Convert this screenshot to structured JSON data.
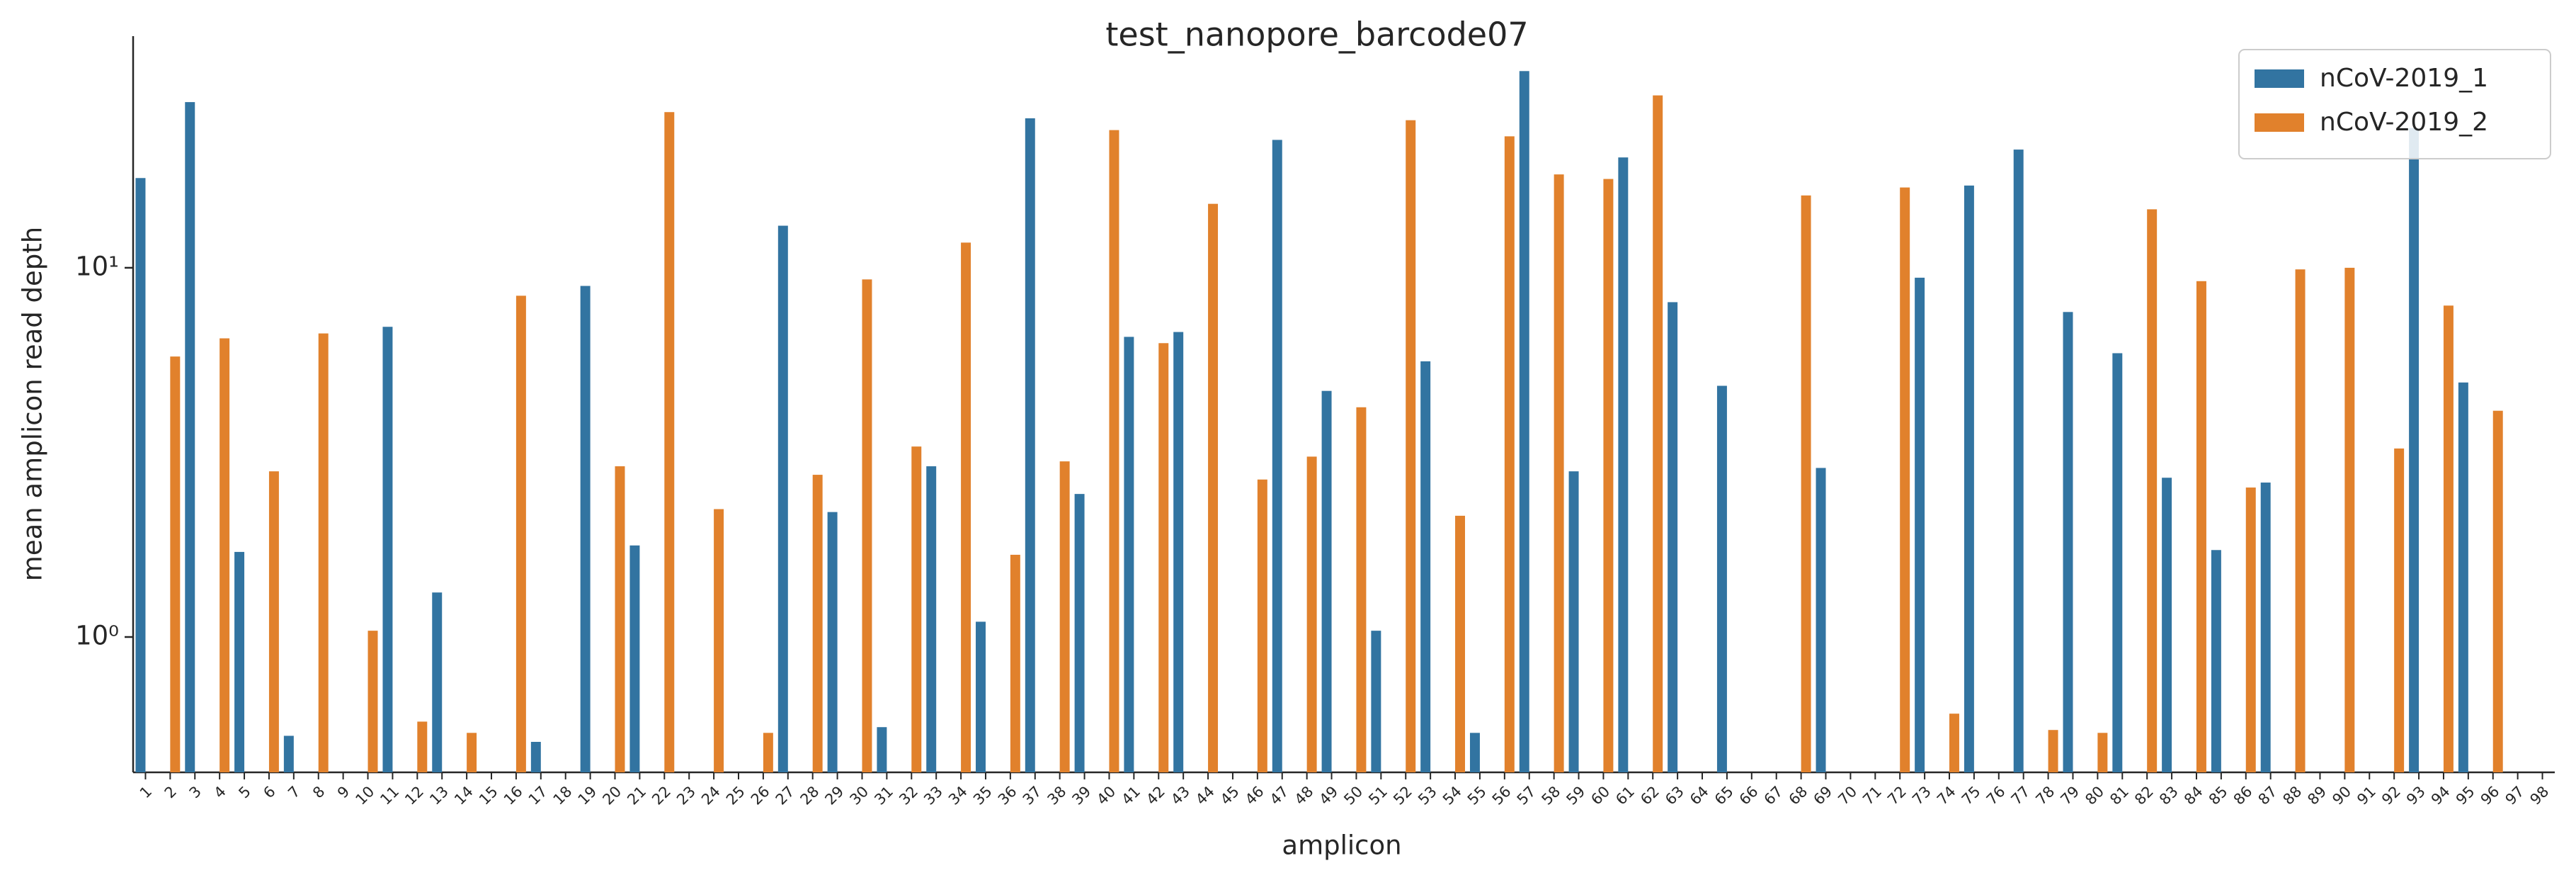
{
  "chart_data": {
    "type": "bar",
    "title": "test_nanopore_barcode07",
    "x_label": "amplicon",
    "y_label": "mean amplicon read depth",
    "categories": [
      "1",
      "2",
      "3",
      "4",
      "5",
      "6",
      "7",
      "8",
      "9",
      "10",
      "11",
      "12",
      "13",
      "14",
      "15",
      "16",
      "17",
      "18",
      "19",
      "20",
      "21",
      "22",
      "23",
      "24",
      "25",
      "26",
      "27",
      "28",
      "29",
      "30",
      "31",
      "32",
      "33",
      "34",
      "35",
      "36",
      "37",
      "38",
      "39",
      "40",
      "41",
      "42",
      "43",
      "44",
      "45",
      "46",
      "47",
      "48",
      "49",
      "50",
      "51",
      "52",
      "53",
      "54",
      "55",
      "56",
      "57",
      "58",
      "59",
      "60",
      "61",
      "62",
      "63",
      "64",
      "65",
      "66",
      "67",
      "68",
      "69",
      "70",
      "71",
      "72",
      "73",
      "74",
      "75",
      "76",
      "77",
      "78",
      "79",
      "80",
      "81",
      "82",
      "83",
      "84",
      "85",
      "86",
      "87",
      "88",
      "89",
      "90",
      "91",
      "92",
      "93",
      "94",
      "95",
      "96",
      "97",
      "98"
    ],
    "series": [
      {
        "name": "nCoV-2019_1",
        "color": "#3274a1",
        "values": [
          17.5,
          null,
          28.1,
          null,
          1.7,
          null,
          0.54,
          null,
          null,
          null,
          6.92,
          null,
          1.32,
          null,
          null,
          null,
          0.52,
          null,
          8.93,
          null,
          1.77,
          null,
          null,
          null,
          null,
          null,
          13.0,
          null,
          2.18,
          null,
          0.57,
          null,
          2.9,
          null,
          1.1,
          null,
          25.4,
          null,
          2.44,
          null,
          6.5,
          null,
          6.7,
          null,
          null,
          null,
          22.2,
          null,
          4.64,
          null,
          1.04,
          null,
          5.58,
          null,
          0.55,
          null,
          34.1,
          null,
          2.81,
          null,
          19.9,
          null,
          8.07,
          null,
          4.79,
          null,
          null,
          null,
          2.87,
          null,
          null,
          null,
          9.4,
          null,
          16.7,
          null,
          20.9,
          null,
          7.59,
          null,
          5.87,
          null,
          2.7,
          null,
          1.72,
          null,
          2.62,
          null,
          null,
          null,
          null,
          null,
          23.9,
          null,
          4.89,
          null,
          null,
          null
        ]
      },
      {
        "name": "nCoV-2019_2",
        "color": "#e1812c",
        "values": [
          null,
          5.75,
          null,
          6.44,
          null,
          2.81,
          null,
          6.64,
          null,
          1.04,
          null,
          0.59,
          null,
          0.55,
          null,
          8.4,
          null,
          null,
          null,
          2.9,
          null,
          26.4,
          null,
          2.22,
          null,
          0.55,
          null,
          2.75,
          null,
          9.3,
          null,
          3.28,
          null,
          11.7,
          null,
          1.67,
          null,
          2.99,
          null,
          23.6,
          null,
          6.25,
          null,
          14.9,
          null,
          2.67,
          null,
          3.08,
          null,
          4.19,
          null,
          25.1,
          null,
          2.13,
          null,
          22.7,
          null,
          17.9,
          null,
          17.4,
          null,
          29.3,
          null,
          null,
          null,
          null,
          null,
          15.7,
          null,
          null,
          null,
          16.5,
          null,
          0.62,
          null,
          null,
          null,
          0.56,
          null,
          0.55,
          null,
          14.4,
          null,
          9.2,
          null,
          2.54,
          null,
          9.9,
          null,
          10.0,
          null,
          3.24,
          null,
          7.9,
          null,
          4.1,
          null,
          null
        ]
      }
    ],
    "ylim": [
      0.43,
      42.4
    ],
    "y_scale": "log",
    "yticks": [
      {
        "value": 1,
        "label": "10⁰"
      },
      {
        "value": 10,
        "label": "10¹"
      }
    ],
    "legend": "upper right"
  }
}
